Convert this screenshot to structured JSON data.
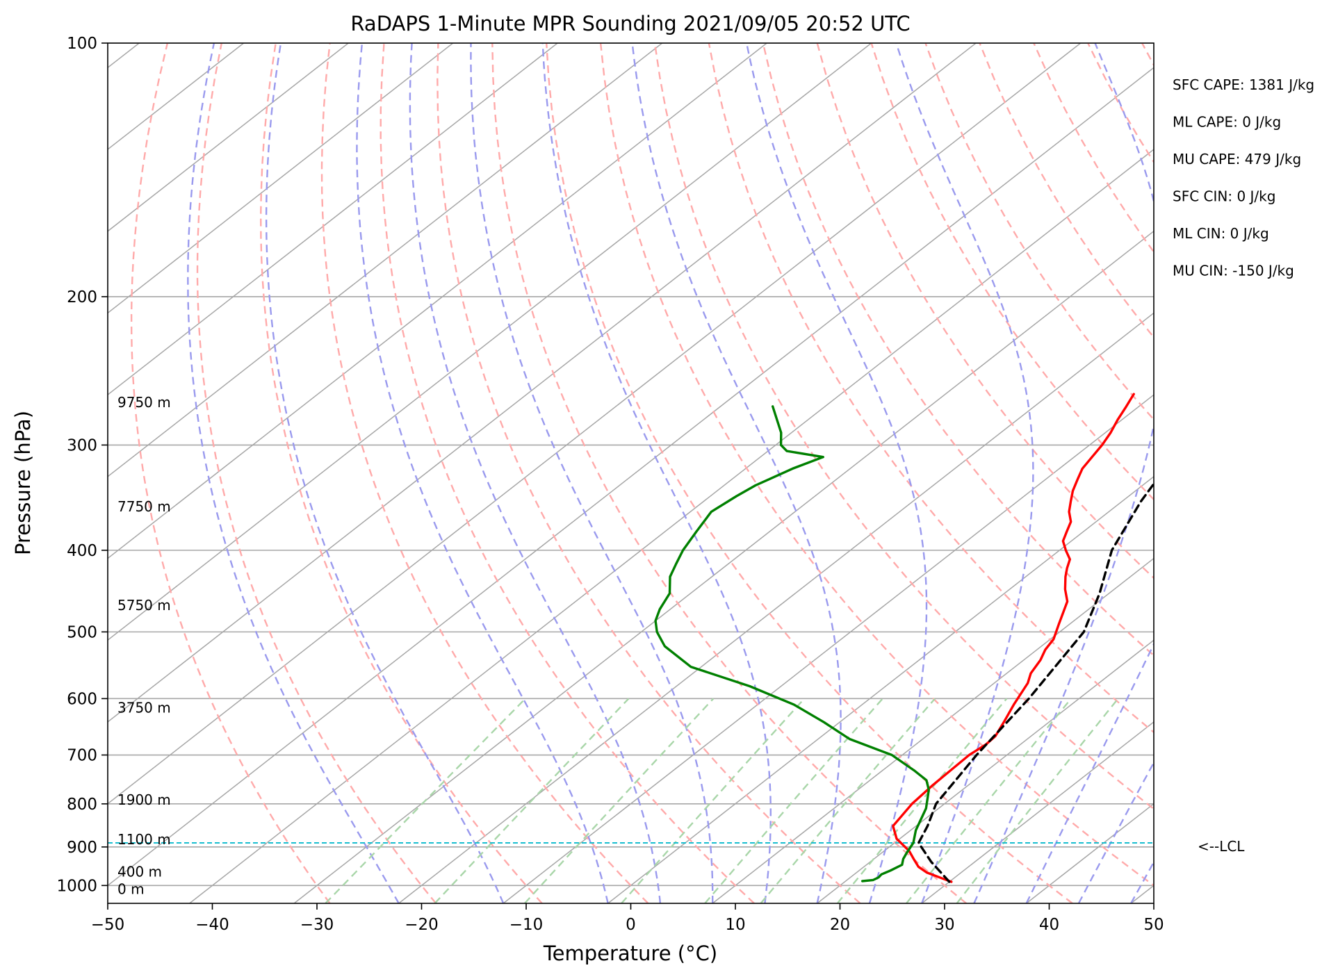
{
  "chart_data": {
    "type": "line",
    "title": "RaDAPS 1-Minute MPR Sounding 2021/09/05 20:52 UTC",
    "xlabel": "Temperature (°C)",
    "ylabel": "Pressure (hPa)",
    "xlim": [
      -50,
      50
    ],
    "ylim": [
      1050,
      100
    ],
    "y_scale": "log",
    "x_ticks": [
      -50,
      -40,
      -30,
      -20,
      -10,
      0,
      10,
      20,
      30,
      40,
      50
    ],
    "x_tick_labels": [
      "−50",
      "−40",
      "−30",
      "−20",
      "−10",
      "0",
      "10",
      "20",
      "30",
      "40",
      "50"
    ],
    "y_ticks": [
      100,
      200,
      300,
      400,
      500,
      600,
      700,
      800,
      900,
      1000
    ],
    "y_tick_labels": [
      "100",
      "200",
      "300",
      "400",
      "500",
      "600",
      "700",
      "800",
      "900",
      "1000"
    ],
    "skew_deg_per_decade": 103,
    "isobar_grid": true,
    "series": [
      {
        "color": "#ff0000",
        "x": [
          30.2,
          28.8,
          26.7,
          25.2,
          23.8,
          22.4,
          19.7,
          17.8,
          16.9,
          16.6,
          16.4,
          16.7,
          16.6,
          15.7,
          14.5,
          13.2,
          12.3,
          11.6,
          10.8,
          10.3,
          9.0,
          7.0,
          5.3,
          3.8,
          2.9,
          2.1,
          0.6,
          -0.8,
          -1.6,
          -2.4,
          -3.8,
          -4.9,
          -6.0,
          -6.9,
          -7.8,
          -8.3,
          -8.8,
          -9.5,
          -10.4,
          -11.2,
          -12.0
        ],
        "y": [
          990,
          980,
          965,
          950,
          930,
          910,
          880,
          850,
          800,
          760,
          700,
          680,
          665,
          640,
          610,
          575,
          560,
          540,
          525,
          510,
          490,
          460,
          445,
          430,
          420,
          410,
          400,
          390,
          380,
          370,
          360,
          350,
          340,
          330,
          320,
          310,
          300,
          290,
          280,
          270,
          261
        ]
      },
      {
        "color": "#008000",
        "x": [
          21.6,
          22.5,
          22.7,
          22.6,
          23.0,
          23.4,
          22.8,
          22.4,
          21.8,
          20.5,
          18.8,
          16.8,
          15.4,
          13.0,
          9.0,
          3.0,
          -1.5,
          -6.5,
          -13.0,
          -21.0,
          -26.0,
          -28.5,
          -30.0,
          -31.0,
          -32.0,
          -34.0,
          -35.0,
          -36.0,
          -37.0,
          -38.0,
          -37.5,
          -37.0,
          -36.5,
          -35.5,
          -34.0,
          -38.2,
          -39.5,
          -41.0,
          -45.0
        ],
        "y": [
          988,
          985,
          978,
          970,
          960,
          945,
          930,
          915,
          890,
          860,
          810,
          770,
          750,
          730,
          700,
          670,
          640,
          610,
          580,
          550,
          520,
          500,
          485,
          470,
          450,
          430,
          415,
          400,
          380,
          360,
          345,
          335,
          330,
          320,
          310,
          305,
          300,
          290,
          270
        ]
      },
      {
        "color": "#000000",
        "dashed": true,
        "x": [
          30.0,
          25.8,
          22.3,
          21.1,
          19.2,
          17.1,
          15.2,
          12.3,
          9.1,
          5.0,
          1.8,
          -3.7
        ],
        "y": [
          990,
          937,
          890,
          850,
          800,
          700,
          600,
          500,
          450,
          400,
          350,
          262
        ]
      }
    ],
    "lcl_hpa": 890,
    "lcl_label": "<--LCL",
    "height_labels": [
      {
        "p": 267,
        "text": "9750 m"
      },
      {
        "p": 355,
        "text": "7750 m"
      },
      {
        "p": 465,
        "text": "5750 m"
      },
      {
        "p": 615,
        "text": "3750 m"
      },
      {
        "p": 791,
        "text": "1900 m"
      },
      {
        "p": 882,
        "text": "1100 m"
      },
      {
        "p": 963,
        "text": "400 m"
      },
      {
        "p": 1010,
        "text": "0 m"
      }
    ],
    "annotations": [
      "SFC CAPE: 1381 J/kg",
      "ML CAPE: 0 J/kg",
      "MU CAPE: 479 J/kg",
      "SFC CIN: 0 J/kg",
      "ML CIN: 0 J/kg",
      "MU CIN: -150 J/kg"
    ],
    "isotherm_temps": [
      -150,
      -140,
      -130,
      -120,
      -110,
      -100,
      -90,
      -80,
      -70,
      -60,
      -50,
      -40,
      -30,
      -20,
      -10,
      0,
      10,
      20,
      30,
      40,
      50
    ],
    "dry_adiabat_thetas": [
      -30,
      -20,
      -10,
      0,
      10,
      20,
      30,
      40,
      50,
      60,
      70,
      80,
      90,
      100,
      110,
      120,
      130,
      140,
      150,
      160,
      170,
      180,
      190,
      200
    ],
    "moist_adiabat_surface_temps": [
      -20,
      -10,
      0,
      5,
      10,
      15,
      20,
      25,
      30,
      35,
      40,
      45,
      50
    ],
    "mixing_ratios": [
      0.4,
      1,
      2,
      4,
      7,
      10,
      16,
      24,
      32
    ],
    "colors": {
      "temperature": "#ff0000",
      "dewpoint": "#008000",
      "parcel": "#000000",
      "lcl": "#17becf",
      "isotherm": "#a6a6a6",
      "dry_adiabat": "#ffaaaa",
      "moist_adiabat": "#9a9aee",
      "mixing_ratio": "#a9d6a9"
    }
  }
}
